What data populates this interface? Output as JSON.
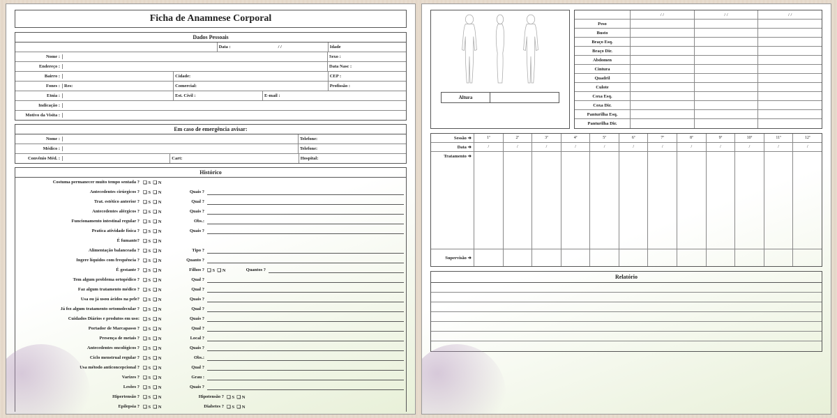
{
  "title": "Ficha de Anamnese Corporal",
  "sections": {
    "personal": {
      "title": "Dados Pessoais",
      "labels": {
        "data": "Data :",
        "idade": "Idade",
        "nome": "Nome :",
        "sexo": "Sexo :",
        "endereco": "Endereço :",
        "datanasc": "Data Nasc :",
        "bairro": "Bairro :",
        "cidade": "Cidade:",
        "cep": "CEP :",
        "fones": "Fones :",
        "res": "Res:",
        "comercial": "Comercial:",
        "profissao": "Profissão :",
        "etnia": "Etnia :",
        "estcivil": "Est. Civil :",
        "email": "E-mail :",
        "indicacao": "Indicação :",
        "motivo": "Motivo da Visita :"
      },
      "date_placeholder": "/      /"
    },
    "emergency": {
      "title": "Em caso de emergência avisar:",
      "labels": {
        "nome": "Nome :",
        "telefone": "Telefone:",
        "medico": "Médico :",
        "telefone2": "Telefone:",
        "convenio": "Convênio Méd. :",
        "cart": "Cart:",
        "hospital": "Hospital:"
      }
    },
    "historico": {
      "title": "Histórico",
      "yes": "S",
      "no": "N",
      "items": [
        {
          "q": "Costuma permanecer muito tempo sentada ?",
          "extra": ""
        },
        {
          "q": "Antecedentes cirúrgicos ?",
          "extra": "Quais ?"
        },
        {
          "q": "Trat. estético anterior ?",
          "extra": "Qual ?"
        },
        {
          "q": "Antecedentes alérgicos ?",
          "extra": "Quais ?"
        },
        {
          "q": "Funcionamento intestinal regular ?",
          "extra": "Obs.:"
        },
        {
          "q": "Pratica atividade física ?",
          "extra": "Quais ?"
        },
        {
          "q": "É fumante?",
          "extra": ""
        },
        {
          "q": "Alimentação balanceada ?",
          "extra": "Tipo ?"
        },
        {
          "q": "Ingere líquidos com frequência ?",
          "extra": "Quanto ?"
        },
        {
          "q": "É gestante ?",
          "extra": "Filhos ?",
          "extra2sn": true,
          "extra2": "Quantos ?"
        },
        {
          "q": "Tem algum problema ortopédico ?",
          "extra": "Qual ?"
        },
        {
          "q": "Faz algum tratamento médico ?",
          "extra": "Qual ?"
        },
        {
          "q": "Usa ou já usou ácidos na pele?",
          "extra": "Quais ?"
        },
        {
          "q": "Já fez algum tratamento ortomolecular ?",
          "extra": "Qual ?"
        },
        {
          "q": "Cuidados Diários e produtos em uso:",
          "extra": "Quais ?"
        },
        {
          "q": "Portador de Marcapasso ?",
          "extra": "Qual ?"
        },
        {
          "q": "Presença de metais ?",
          "extra": "Local ?"
        },
        {
          "q": "Antecedentes oncológicos ?",
          "extra": "Quais ?"
        },
        {
          "q": "Ciclo  menstrual regular ?",
          "extra": "Obs.:"
        },
        {
          "q": "Usa método anticoncepcional ?",
          "extra": "Qual ?"
        },
        {
          "q": "Varizes ?",
          "extra": "Grau :"
        },
        {
          "q": "Lesões ?",
          "extra": "Quais ?"
        },
        {
          "q": "Hipertensão ?",
          "extra": "",
          "extra_label2": "Hipotensão ?",
          "extra2sn": true
        },
        {
          "q": "Epilepsia ?",
          "extra": "",
          "extra_label2": "Diabetes ?",
          "extra2sn": true
        }
      ]
    }
  },
  "page2": {
    "altura": "Altura",
    "measurements": {
      "date_placeholder": "/        /",
      "rows": [
        "Peso",
        "Busto",
        "Braço Esq.",
        "Braço Dir.",
        "Abdomen",
        "Cintura",
        "Quadril",
        "Culote",
        "Coxa Esq.",
        "Coxa Dir.",
        "Panturilha Esq.",
        "Panturilha Dir."
      ],
      "cols": 3
    },
    "sessions": {
      "row_labels": {
        "sessao": "Sessão ➜",
        "data": "Data ➜",
        "tratamento": "Tratamento ➜",
        "supervisao": "Supervisão ➜"
      },
      "headers": [
        "1ª",
        "2ª",
        "3ª",
        "4ª",
        "5ª",
        "6ª",
        "7ª",
        "8ª",
        "9ª",
        "10ª",
        "11ª",
        "12ª"
      ],
      "date_placeholder": "/"
    },
    "report": {
      "title": "Relatório",
      "lines": 7
    }
  },
  "colors": {
    "border": "#555555",
    "text": "#222222",
    "bg_top": "#ffffff",
    "bg_bottom": "#e8f0d8",
    "wood": "#e8ddd0"
  }
}
